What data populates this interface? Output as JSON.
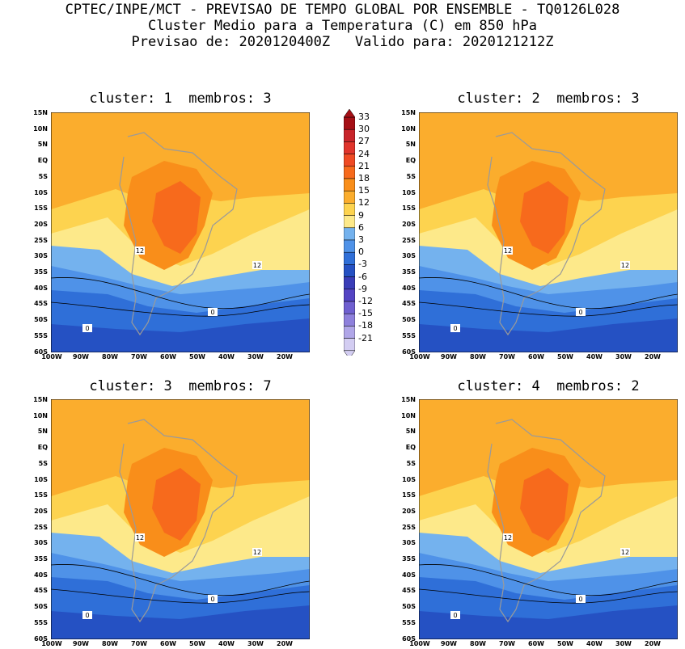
{
  "header": {
    "line1": "CPTEC/INPE/MCT - PREVISAO DE TEMPO GLOBAL POR ENSEMBLE - TQ0126L028",
    "line2": "Cluster Medio para a Temperatura (C) em 850 hPa",
    "line3": "Previsao de: 2020120400Z   Valido para: 2020121212Z"
  },
  "panels": [
    {
      "title": "cluster: 1  membros: 3"
    },
    {
      "title": "cluster: 2  membros: 3"
    },
    {
      "title": "cluster: 3  membros: 7"
    },
    {
      "title": "cluster: 4  membros: 2"
    }
  ],
  "lat_labels": [
    "15N",
    "10N",
    "5N",
    "EQ",
    "5S",
    "10S",
    "15S",
    "20S",
    "25S",
    "30S",
    "35S",
    "40S",
    "45S",
    "50S",
    "55S",
    "60S"
  ],
  "lon_labels": [
    "100W",
    "90W",
    "80W",
    "70W",
    "60W",
    "50W",
    "40W",
    "30W",
    "20W"
  ],
  "colorbar": {
    "labels": [
      "33",
      "30",
      "27",
      "24",
      "21",
      "18",
      "15",
      "12",
      "9",
      "6",
      "3",
      "0",
      "-3",
      "-6",
      "-9",
      "-12",
      "-15",
      "-18",
      "-21"
    ],
    "colors": [
      "#a50f15",
      "#c8242a",
      "#e0342c",
      "#ef4a24",
      "#f76a1c",
      "#f98e1a",
      "#fbad2d",
      "#fdd34f",
      "#fde98a",
      "#74b2ee",
      "#4f92e8",
      "#2f6fd8",
      "#2551c3",
      "#3a3db8",
      "#5444c4",
      "#6f5fd0",
      "#8e80dc",
      "#b0a6e8",
      "#d3cdf2"
    ],
    "contour_labels": [
      "12",
      "0"
    ]
  }
}
